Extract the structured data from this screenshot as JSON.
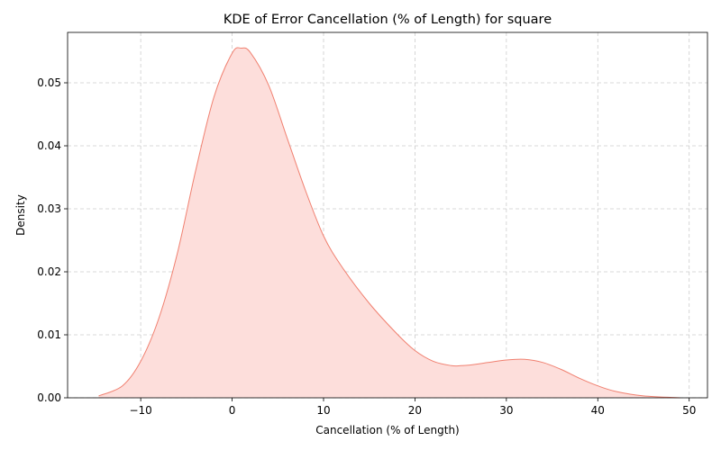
{
  "chart_data": {
    "type": "area",
    "title": "KDE of Error Cancellation (% of Length) for square",
    "xlabel": "Cancellation (% of Length)",
    "ylabel": "Density",
    "xlim": [
      -18,
      52
    ],
    "ylim": [
      0,
      0.058
    ],
    "xticks": [
      -10,
      0,
      10,
      20,
      30,
      40,
      50
    ],
    "yticks": [
      0.0,
      0.01,
      0.02,
      0.03,
      0.04,
      0.05
    ],
    "ytick_labels": [
      "0.00",
      "0.01",
      "0.02",
      "0.03",
      "0.04",
      "0.05"
    ],
    "grid": true,
    "legend": "none",
    "fill_color": "#fddedb",
    "line_color": "#f08070",
    "x": [
      -14.6,
      -12,
      -10,
      -8,
      -6,
      -4,
      -2,
      0,
      1,
      2,
      4,
      6,
      8,
      10,
      12,
      15,
      18,
      20,
      22,
      24,
      25,
      26,
      28,
      30,
      32,
      34,
      36,
      38,
      40,
      42,
      45,
      49
    ],
    "y": [
      0.0003,
      0.0019,
      0.0058,
      0.0127,
      0.0229,
      0.036,
      0.0477,
      0.0547,
      0.0555,
      0.0548,
      0.0496,
      0.0413,
      0.033,
      0.0257,
      0.0208,
      0.015,
      0.0102,
      0.0075,
      0.0058,
      0.0051,
      0.0051,
      0.0052,
      0.0056,
      0.006,
      0.0061,
      0.0056,
      0.0045,
      0.0031,
      0.0019,
      0.001,
      0.0003,
      0.0
    ]
  }
}
